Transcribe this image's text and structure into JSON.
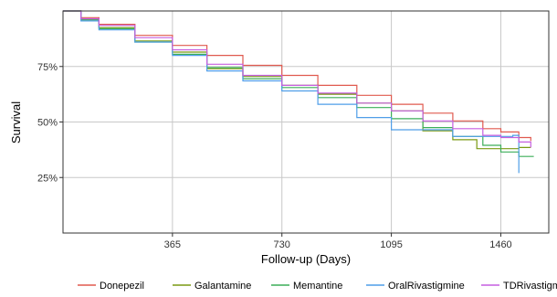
{
  "chart_data": {
    "type": "line",
    "title": "",
    "xlabel": "Follow-up (Days)",
    "ylabel": "Survival",
    "xlim": [
      0,
      1620
    ],
    "ylim": [
      0,
      1.0
    ],
    "x_ticks": [
      365,
      730,
      1095,
      1460
    ],
    "x_tick_labels": [
      "365",
      "730",
      "1095",
      "1460"
    ],
    "y_ticks": [
      0.25,
      0.5,
      0.75
    ],
    "y_tick_labels": [
      "25%",
      "50%",
      "75%"
    ],
    "grid": true,
    "legend_position": "bottom",
    "series": [
      {
        "name": "Donepezil",
        "color": "#e05a4f",
        "x": [
          0,
          60,
          120,
          240,
          365,
          480,
          600,
          730,
          850,
          980,
          1095,
          1200,
          1300,
          1400,
          1460,
          1520,
          1560
        ],
        "y": [
          1.0,
          0.97,
          0.94,
          0.89,
          0.845,
          0.8,
          0.755,
          0.71,
          0.665,
          0.62,
          0.58,
          0.54,
          0.505,
          0.47,
          0.455,
          0.43,
          0.415
        ]
      },
      {
        "name": "Galantamine",
        "color": "#7a9a12",
        "x": [
          0,
          60,
          120,
          240,
          365,
          480,
          600,
          730,
          850,
          980,
          1095,
          1200,
          1300,
          1380,
          1460,
          1520,
          1560
        ],
        "y": [
          1.0,
          0.96,
          0.925,
          0.865,
          0.815,
          0.74,
          0.705,
          0.665,
          0.625,
          0.585,
          0.55,
          0.46,
          0.42,
          0.38,
          0.38,
          0.385,
          0.385
        ]
      },
      {
        "name": "Memantine",
        "color": "#3cae59",
        "x": [
          0,
          60,
          120,
          240,
          365,
          480,
          600,
          730,
          850,
          980,
          1095,
          1200,
          1300,
          1400,
          1460,
          1520,
          1570
        ],
        "y": [
          1.0,
          0.96,
          0.92,
          0.86,
          0.805,
          0.745,
          0.695,
          0.655,
          0.61,
          0.565,
          0.515,
          0.475,
          0.435,
          0.395,
          0.365,
          0.345,
          0.345
        ]
      },
      {
        "name": "OralRivastigmine",
        "color": "#4f9ee8",
        "x": [
          0,
          60,
          120,
          240,
          365,
          480,
          600,
          730,
          850,
          980,
          1095,
          1200,
          1300,
          1400,
          1460,
          1500,
          1520
        ],
        "y": [
          1.0,
          0.955,
          0.915,
          0.86,
          0.8,
          0.73,
          0.685,
          0.64,
          0.58,
          0.52,
          0.465,
          0.465,
          0.435,
          0.435,
          0.435,
          0.44,
          0.27
        ]
      },
      {
        "name": "TDRivastigmine",
        "color": "#c65fe0",
        "x": [
          0,
          60,
          120,
          240,
          365,
          480,
          600,
          730,
          850,
          980,
          1095,
          1200,
          1300,
          1400,
          1460,
          1520,
          1560
        ],
        "y": [
          1.0,
          0.965,
          0.935,
          0.88,
          0.825,
          0.76,
          0.71,
          0.665,
          0.63,
          0.585,
          0.55,
          0.505,
          0.47,
          0.44,
          0.43,
          0.41,
          0.385
        ]
      }
    ]
  }
}
